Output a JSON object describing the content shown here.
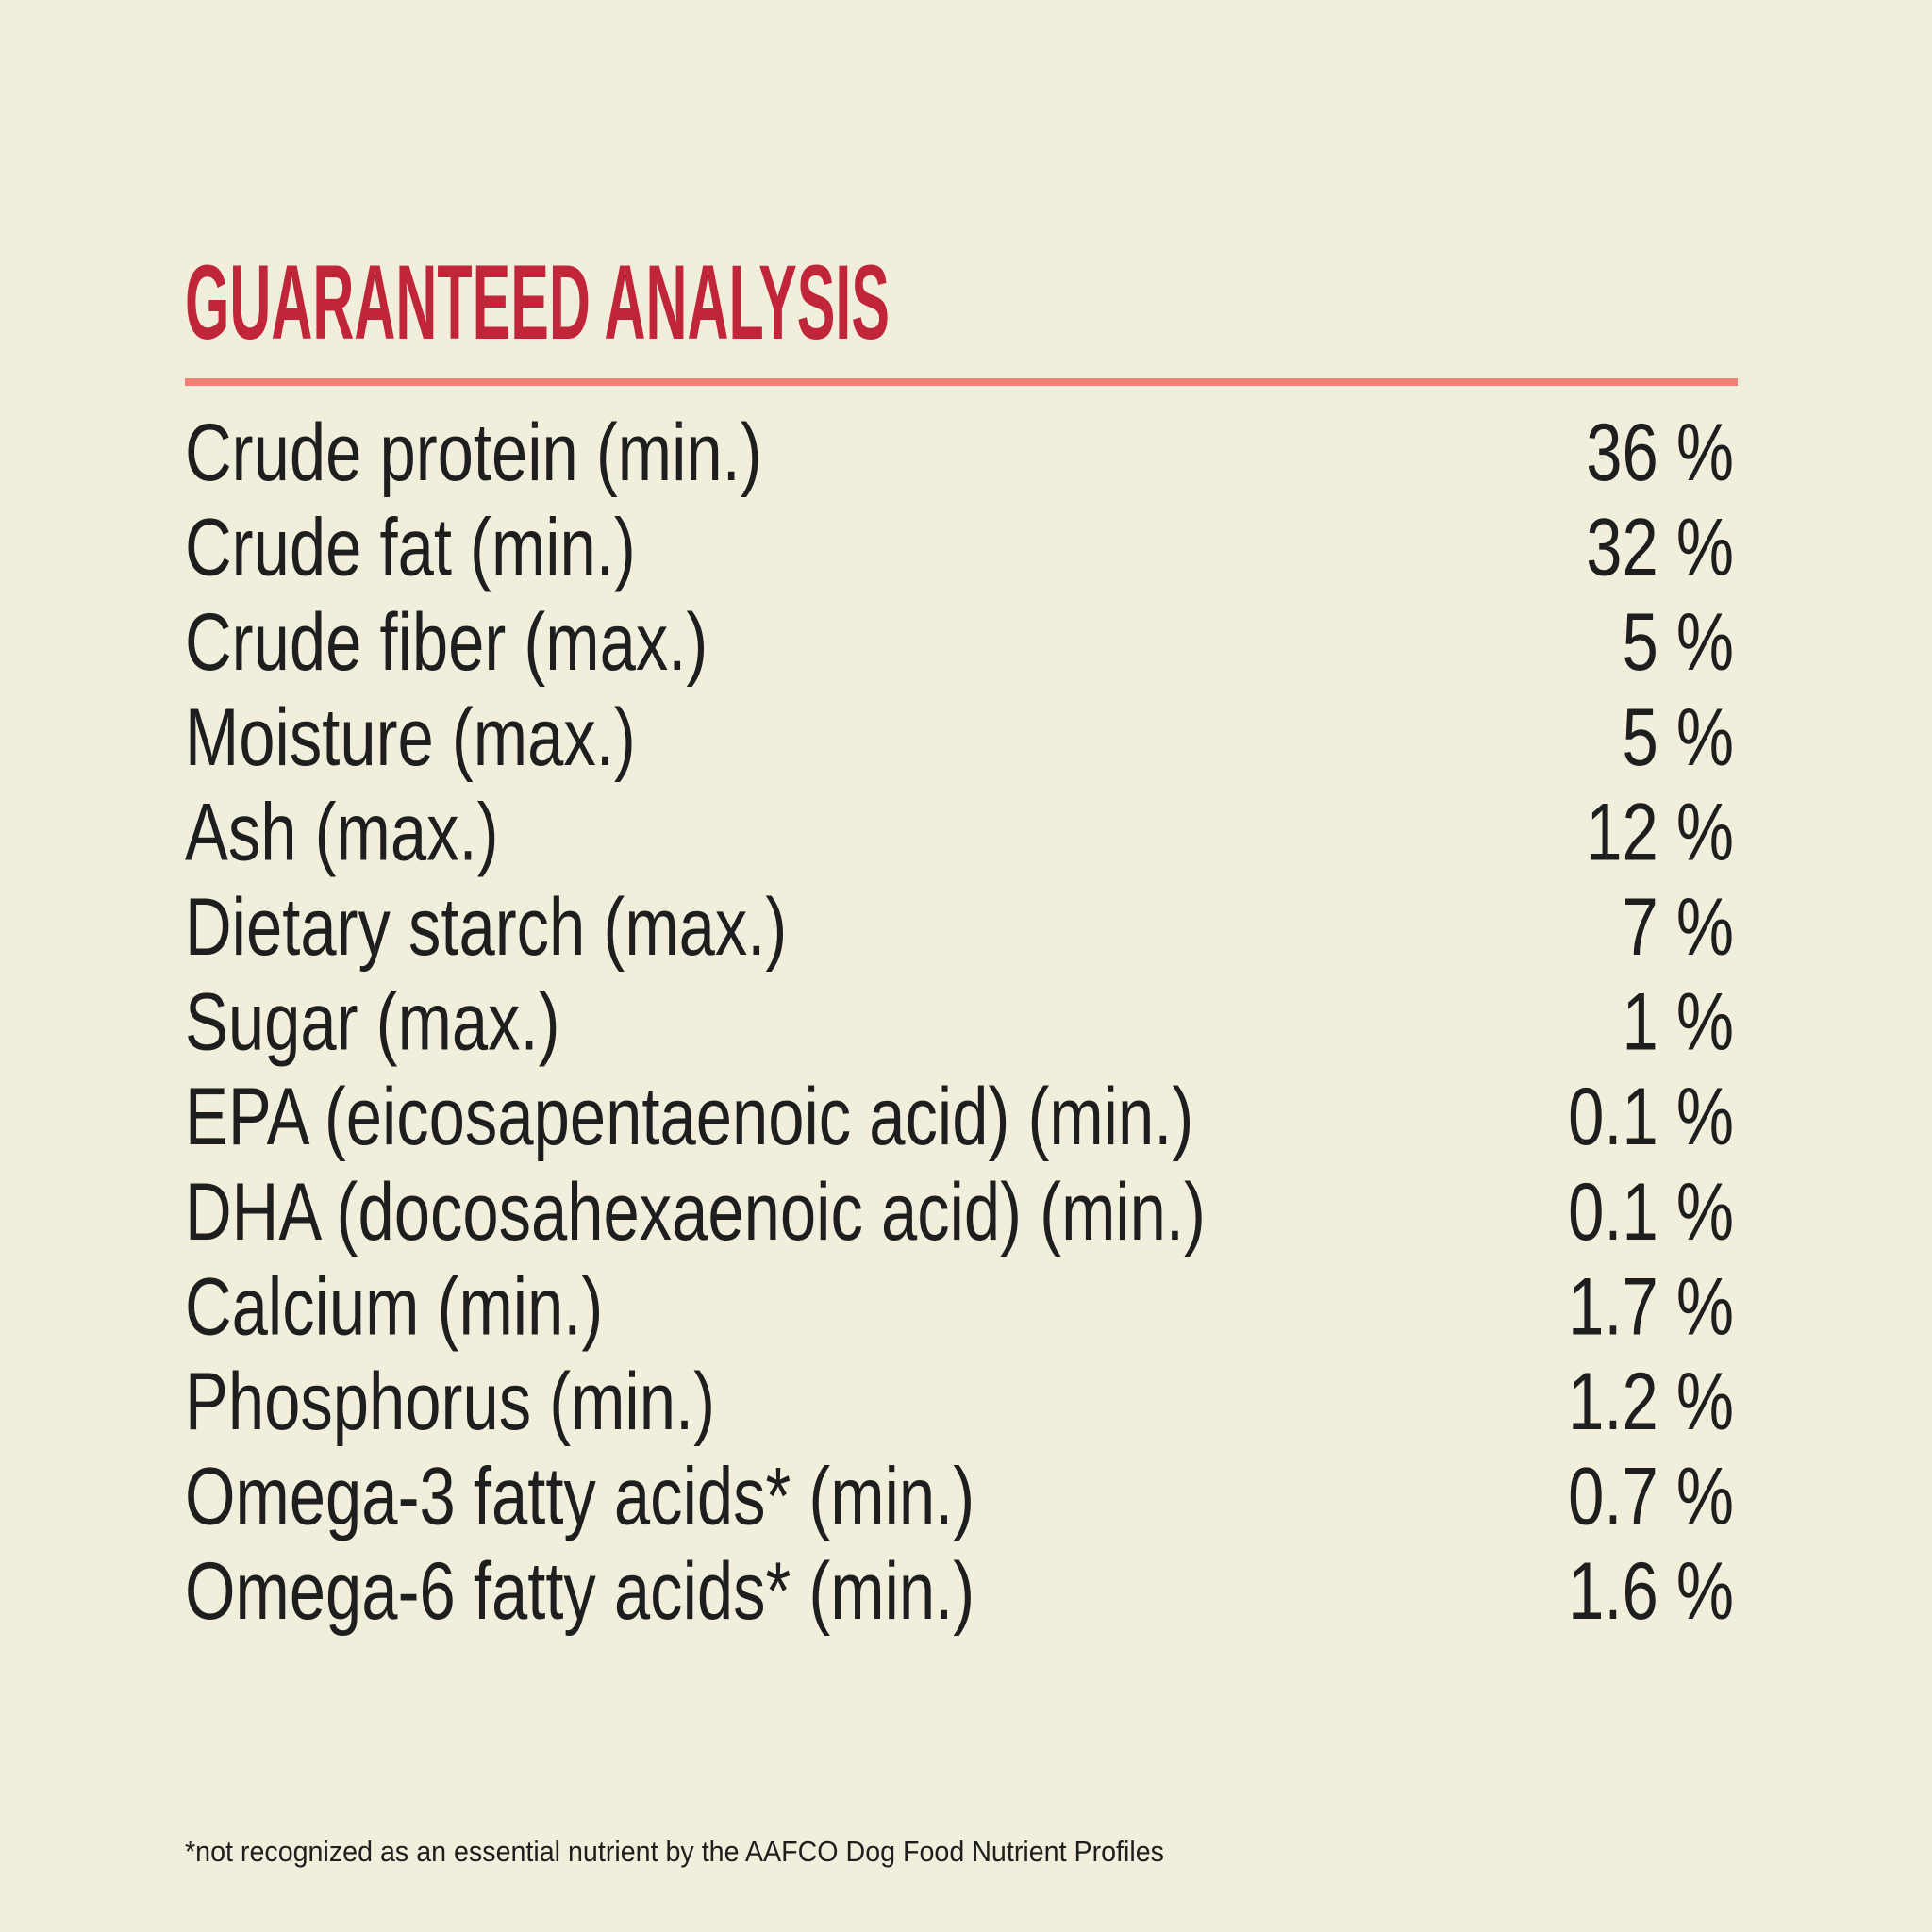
{
  "header": {
    "title": "GUARANTEED ANALYSIS"
  },
  "table": {
    "rows": [
      [
        "Crude protein (min.)",
        "36 %"
      ],
      [
        "Crude fat (min.)",
        "32 %"
      ],
      [
        "Crude fiber (max.)",
        "5 %"
      ],
      [
        "Moisture (max.)",
        "5 %"
      ],
      [
        "Ash (max.)",
        "12 %"
      ],
      [
        "Dietary starch (max.)",
        "7 %"
      ],
      [
        "Sugar (max.)",
        "1 %"
      ],
      [
        "EPA (eicosapentaenoic acid) (min.)",
        "0.1 %"
      ],
      [
        "DHA (docosahexaenoic acid) (min.)",
        "0.1 %"
      ],
      [
        "Calcium (min.)",
        "1.7 %"
      ],
      [
        "Phosphorus (min.)",
        "1.2 %"
      ],
      [
        "Omega-3 fatty acids* (min.)",
        "0.7 %"
      ],
      [
        "Omega-6 fatty acids* (min.)",
        "1.6 %"
      ]
    ]
  },
  "footnote": "*not recognized as an essential nutrient by the AAFCO Dog Food Nutrient Profiles"
}
